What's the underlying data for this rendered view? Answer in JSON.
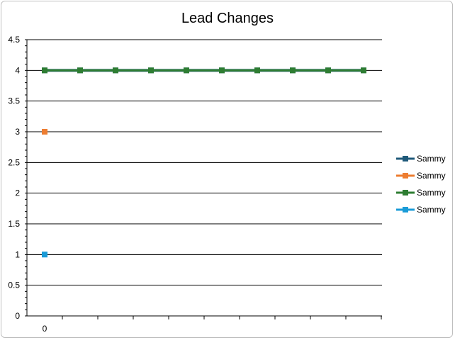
{
  "chart_data": {
    "type": "line",
    "title": "Lead Changes",
    "xlabel": "",
    "ylabel": "",
    "ylim": [
      0,
      4.5
    ],
    "ytick_step": 0.5,
    "y_ticks": [
      "0",
      "0.5",
      "1",
      "1.5",
      "2",
      "2.5",
      "3",
      "3.5",
      "4",
      "4.5"
    ],
    "x_tick_labels": [
      "0"
    ],
    "x_points": 10,
    "grid": true,
    "legend": "right",
    "series": [
      {
        "name": "Sammy",
        "color": "#1f5a7a",
        "values": [
          4,
          4,
          4,
          4,
          4,
          4,
          4,
          4,
          4,
          4
        ]
      },
      {
        "name": "Sammy",
        "color": "#ed7d31",
        "values": [
          3
        ]
      },
      {
        "name": "Sammy",
        "color": "#2e7d32",
        "values": [
          4,
          4,
          4,
          4,
          4,
          4,
          4,
          4,
          4,
          4
        ]
      },
      {
        "name": "Sammy",
        "color": "#1a9bd7",
        "values": [
          1
        ]
      }
    ]
  }
}
